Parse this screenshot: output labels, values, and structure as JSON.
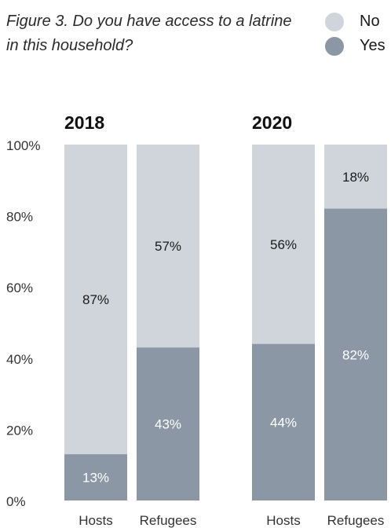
{
  "chart_data": {
    "type": "bar",
    "stacked": true,
    "percent": true,
    "title": "Figure 3. Do you have access to a latrine in this household?",
    "legend": {
      "placement": "top-right",
      "entries": [
        {
          "name": "No",
          "color": "#d0d5dc"
        },
        {
          "name": "Yes",
          "color": "#8b97a4"
        }
      ]
    },
    "ylim": [
      0,
      100
    ],
    "yticks": [
      "0%",
      "20%",
      "40%",
      "60%",
      "80%",
      "100%"
    ],
    "grid": false,
    "groups": [
      {
        "label": "2018",
        "categories": [
          "Hosts",
          "Refugees"
        ],
        "series": [
          {
            "name": "Yes",
            "values": [
              13,
              43
            ],
            "labels": [
              "13%",
              "43%"
            ]
          },
          {
            "name": "No",
            "values": [
              87,
              57
            ],
            "labels": [
              "87%",
              "57%"
            ]
          }
        ]
      },
      {
        "label": "2020",
        "categories": [
          "Hosts",
          "Refugees"
        ],
        "series": [
          {
            "name": "Yes",
            "values": [
              44,
              82
            ],
            "labels": [
              "44%",
              "82%"
            ]
          },
          {
            "name": "No",
            "values": [
              56,
              18
            ],
            "labels": [
              "56%",
              "18%"
            ]
          }
        ]
      }
    ]
  },
  "colors": {
    "no": "#d0d5dc",
    "yes": "#8b97a4",
    "label_on_no": "#1a1a1a",
    "label_on_yes": "#ffffff",
    "axis_text": "#333333"
  }
}
